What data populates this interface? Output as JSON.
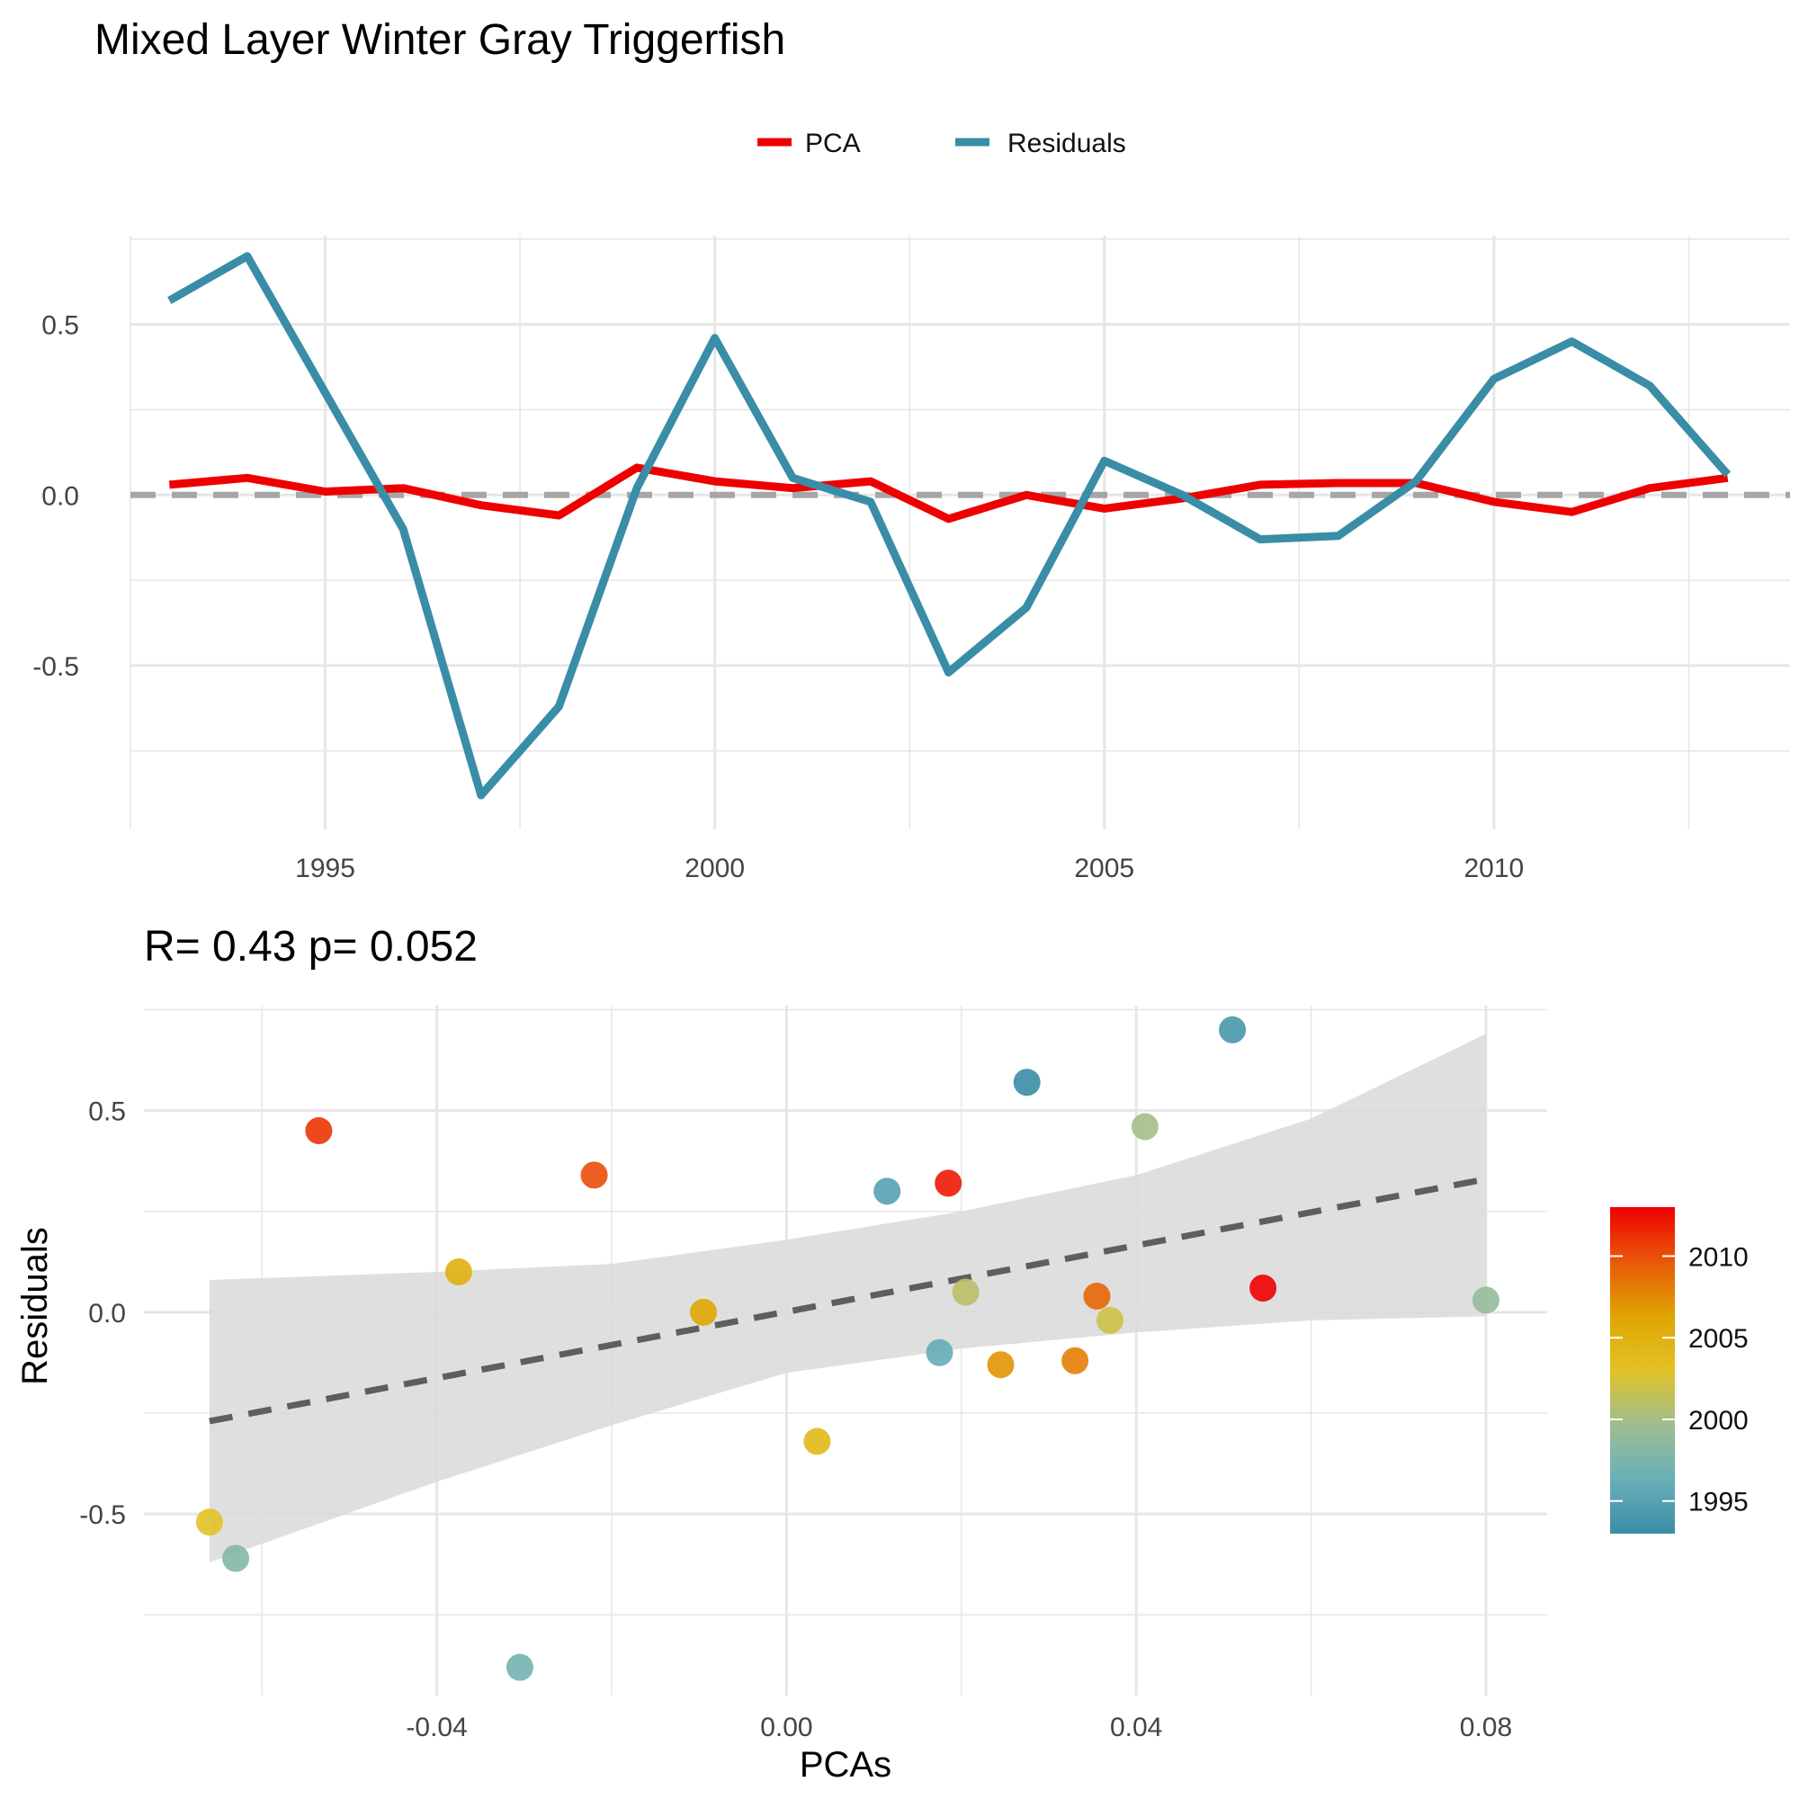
{
  "title": "Mixed Layer Winter Gray Triggerfish",
  "colors": {
    "pca": "#EE0000",
    "residuals": "#3A8DA6",
    "zero_line": "#A6A6A6",
    "grid": "#E6E6E6",
    "fit_line": "#5E5E5E",
    "ci_band": "#D9D9D9"
  },
  "chart_data": [
    {
      "type": "line",
      "title": "",
      "xlabel": "",
      "ylabel": "",
      "x_ticks": [
        "1995",
        "2000",
        "2005",
        "2010"
      ],
      "y_ticks": [
        "-0.5",
        "0.0",
        "0.5"
      ],
      "xlim": [
        1992.5,
        2013.8
      ],
      "ylim": [
        -0.98,
        0.76
      ],
      "legend_position": "top",
      "legend": [
        "PCA",
        "Residuals"
      ],
      "zero_line": true,
      "x": [
        1993,
        1994,
        1995,
        1996,
        1997,
        1998,
        1999,
        2000,
        2001,
        2002,
        2003,
        2004,
        2005,
        2006,
        2007,
        2008,
        2009,
        2010,
        2011,
        2012,
        2013
      ],
      "series": [
        {
          "name": "PCA",
          "values": [
            0.03,
            0.05,
            0.01,
            0.02,
            -0.03,
            -0.06,
            0.08,
            0.04,
            0.02,
            0.04,
            -0.07,
            0.0,
            -0.04,
            -0.01,
            0.03,
            0.035,
            0.035,
            -0.02,
            -0.05,
            0.02,
            0.05
          ]
        },
        {
          "name": "Residuals",
          "values": [
            0.57,
            0.7,
            0.3,
            -0.1,
            -0.88,
            -0.62,
            0.02,
            0.46,
            0.05,
            -0.02,
            -0.52,
            -0.33,
            0.1,
            0.0,
            -0.13,
            -0.12,
            0.04,
            0.34,
            0.45,
            0.32,
            0.06
          ]
        }
      ]
    },
    {
      "type": "scatter",
      "title": "R= 0.43  p= 0.052",
      "xlabel": "PCAs",
      "ylabel": "Residuals",
      "x_ticks": [
        "-0.04",
        "0.00",
        "0.04",
        "0.08"
      ],
      "y_ticks": [
        "-0.5",
        "0.0",
        "0.5"
      ],
      "xlim": [
        -0.0735,
        0.087
      ],
      "ylim": [
        -0.95,
        0.76
      ],
      "fit": {
        "x": [
          -0.066,
          0.08
        ],
        "y": [
          -0.27,
          0.33
        ]
      },
      "ci_band": {
        "x": [
          -0.066,
          -0.04,
          -0.02,
          0.0,
          0.02,
          0.04,
          0.06,
          0.08
        ],
        "upper": [
          0.08,
          0.1,
          0.12,
          0.18,
          0.25,
          0.34,
          0.48,
          0.69
        ],
        "lower": [
          -0.62,
          -0.42,
          -0.28,
          -0.15,
          -0.09,
          -0.05,
          -0.02,
          -0.01
        ]
      },
      "points": [
        {
          "x": 0.051,
          "y": 0.7,
          "year": 1994
        },
        {
          "x": 0.0275,
          "y": 0.57,
          "year": 1993
        },
        {
          "x": 0.0115,
          "y": 0.3,
          "year": 1995
        },
        {
          "x": 0.0175,
          "y": -0.1,
          "year": 1996
        },
        {
          "x": -0.0305,
          "y": -0.88,
          "year": 1997
        },
        {
          "x": -0.063,
          "y": -0.61,
          "year": 1998
        },
        {
          "x": 0.08,
          "y": 0.03,
          "year": 1999
        },
        {
          "x": 0.041,
          "y": 0.46,
          "year": 2000
        },
        {
          "x": 0.0205,
          "y": 0.05,
          "year": 2001
        },
        {
          "x": 0.037,
          "y": -0.02,
          "year": 2002
        },
        {
          "x": 0.0035,
          "y": -0.32,
          "year": 2004
        },
        {
          "x": -0.066,
          "y": -0.52,
          "year": 2003
        },
        {
          "x": -0.0375,
          "y": 0.1,
          "year": 2005
        },
        {
          "x": 0.0245,
          "y": -0.13,
          "year": 2007
        },
        {
          "x": 0.033,
          "y": -0.12,
          "year": 2008
        },
        {
          "x": -0.0095,
          "y": 0.0,
          "year": 2006
        },
        {
          "x": 0.0355,
          "y": 0.04,
          "year": 2009
        },
        {
          "x": -0.022,
          "y": 0.34,
          "year": 2010
        },
        {
          "x": -0.0535,
          "y": 0.45,
          "year": 2011
        },
        {
          "x": 0.0545,
          "y": 0.06,
          "year": 2013
        },
        {
          "x": 0.0185,
          "y": 0.32,
          "year": 2012
        }
      ],
      "colorbar": {
        "ticks": [
          "1995",
          "2000",
          "2005",
          "2010"
        ],
        "range": [
          1993,
          2013
        ],
        "stops": [
          "#3A8DA6",
          "#6AAFB9",
          "#9EBE91",
          "#E2C227",
          "#DFA400",
          "#E8580A",
          "#F00000"
        ]
      }
    }
  ]
}
